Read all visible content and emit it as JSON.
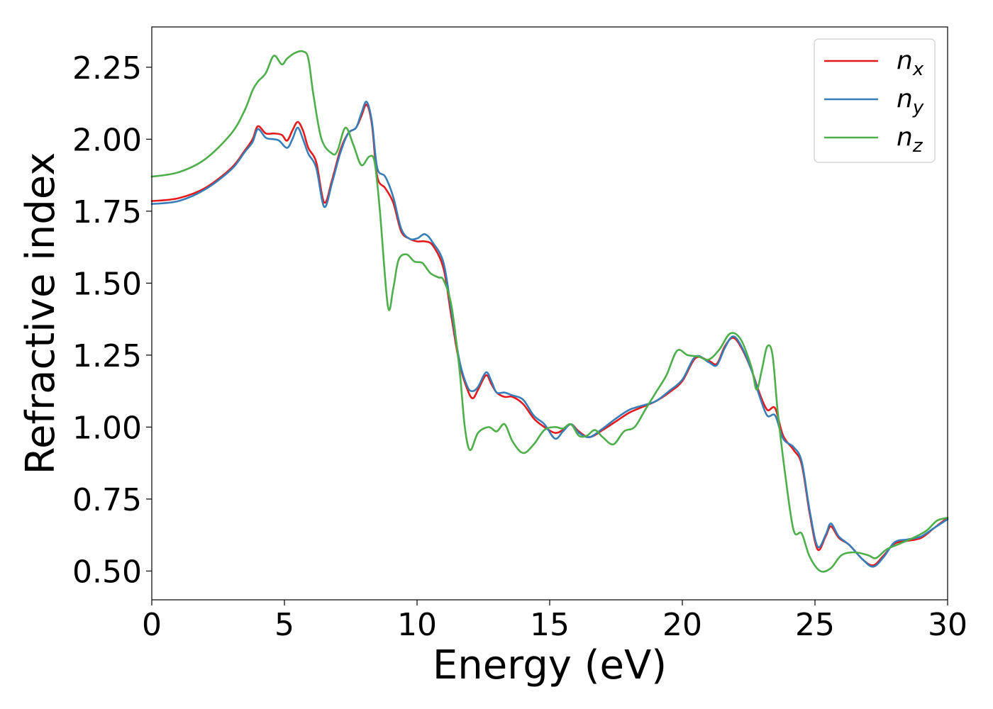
{
  "chart_data": {
    "type": "line",
    "xlabel": "Energy (eV)",
    "ylabel": "Refractive index",
    "xlim": [
      0,
      30
    ],
    "ylim": [
      0.4,
      2.39
    ],
    "xticks": [
      0,
      5,
      10,
      15,
      20,
      25,
      30
    ],
    "xtick_labels": [
      "0",
      "5",
      "10",
      "15",
      "20",
      "25",
      "30"
    ],
    "yticks": [
      0.5,
      0.75,
      1.0,
      1.25,
      1.5,
      1.75,
      2.0,
      2.25
    ],
    "ytick_labels": [
      "0.50",
      "0.75",
      "1.00",
      "1.25",
      "1.50",
      "1.75",
      "2.00",
      "2.25"
    ],
    "grid": false,
    "legend_position": "top-right",
    "series": [
      {
        "name": "n_x",
        "label_main": "n",
        "label_sub": "x",
        "color": "#e41a1c",
        "points": [
          [
            0,
            1.785
          ],
          [
            1,
            1.795
          ],
          [
            2,
            1.83
          ],
          [
            3,
            1.9
          ],
          [
            3.5,
            1.96
          ],
          [
            3.8,
            2.0
          ],
          [
            4.0,
            2.045
          ],
          [
            4.3,
            2.02
          ],
          [
            4.6,
            2.02
          ],
          [
            4.9,
            2.015
          ],
          [
            5.1,
            1.995
          ],
          [
            5.3,
            2.03
          ],
          [
            5.5,
            2.06
          ],
          [
            5.7,
            2.03
          ],
          [
            5.9,
            1.97
          ],
          [
            6.2,
            1.92
          ],
          [
            6.5,
            1.78
          ],
          [
            6.8,
            1.86
          ],
          [
            7.1,
            1.96
          ],
          [
            7.4,
            2.02
          ],
          [
            7.7,
            2.04
          ],
          [
            7.9,
            2.08
          ],
          [
            8.1,
            2.12
          ],
          [
            8.3,
            2.05
          ],
          [
            8.5,
            1.87
          ],
          [
            8.8,
            1.83
          ],
          [
            9.1,
            1.78
          ],
          [
            9.4,
            1.68
          ],
          [
            9.7,
            1.655
          ],
          [
            10.0,
            1.645
          ],
          [
            10.3,
            1.645
          ],
          [
            10.6,
            1.63
          ],
          [
            11.0,
            1.55
          ],
          [
            11.3,
            1.38
          ],
          [
            11.6,
            1.22
          ],
          [
            11.9,
            1.13
          ],
          [
            12.1,
            1.1
          ],
          [
            12.3,
            1.13
          ],
          [
            12.6,
            1.18
          ],
          [
            12.8,
            1.15
          ],
          [
            13.0,
            1.12
          ],
          [
            13.3,
            1.105
          ],
          [
            13.6,
            1.105
          ],
          [
            14.0,
            1.08
          ],
          [
            14.4,
            1.03
          ],
          [
            14.8,
            1.0
          ],
          [
            15.2,
            0.98
          ],
          [
            15.5,
            0.99
          ],
          [
            15.8,
            1.01
          ],
          [
            16.1,
            0.985
          ],
          [
            16.5,
            0.965
          ],
          [
            17.0,
            0.99
          ],
          [
            17.5,
            1.02
          ],
          [
            18.0,
            1.05
          ],
          [
            18.5,
            1.07
          ],
          [
            19.0,
            1.09
          ],
          [
            19.5,
            1.12
          ],
          [
            20.0,
            1.16
          ],
          [
            20.5,
            1.24
          ],
          [
            21.0,
            1.23
          ],
          [
            21.3,
            1.22
          ],
          [
            21.6,
            1.28
          ],
          [
            21.9,
            1.31
          ],
          [
            22.2,
            1.28
          ],
          [
            22.6,
            1.2
          ],
          [
            22.9,
            1.12
          ],
          [
            23.2,
            1.06
          ],
          [
            23.5,
            1.065
          ],
          [
            23.8,
            0.97
          ],
          [
            24.2,
            0.92
          ],
          [
            24.5,
            0.87
          ],
          [
            24.8,
            0.7
          ],
          [
            25.1,
            0.575
          ],
          [
            25.4,
            0.62
          ],
          [
            25.6,
            0.655
          ],
          [
            25.9,
            0.615
          ],
          [
            26.3,
            0.59
          ],
          [
            26.8,
            0.54
          ],
          [
            27.2,
            0.52
          ],
          [
            27.6,
            0.555
          ],
          [
            28.0,
            0.595
          ],
          [
            28.5,
            0.605
          ],
          [
            29.0,
            0.615
          ],
          [
            29.5,
            0.65
          ],
          [
            30.0,
            0.685
          ]
        ]
      },
      {
        "name": "n_y",
        "label_main": "n",
        "label_sub": "y",
        "color": "#377eb8",
        "points": [
          [
            0,
            1.775
          ],
          [
            1,
            1.785
          ],
          [
            2,
            1.825
          ],
          [
            3,
            1.895
          ],
          [
            3.5,
            1.955
          ],
          [
            3.8,
            1.99
          ],
          [
            4.0,
            2.035
          ],
          [
            4.3,
            2.005
          ],
          [
            4.6,
            2.0
          ],
          [
            4.8,
            1.995
          ],
          [
            5.1,
            1.97
          ],
          [
            5.3,
            2.0
          ],
          [
            5.5,
            2.04
          ],
          [
            5.7,
            2.0
          ],
          [
            5.9,
            1.95
          ],
          [
            6.2,
            1.9
          ],
          [
            6.5,
            1.765
          ],
          [
            6.8,
            1.85
          ],
          [
            7.1,
            1.95
          ],
          [
            7.4,
            2.02
          ],
          [
            7.7,
            2.04
          ],
          [
            7.9,
            2.09
          ],
          [
            8.1,
            2.13
          ],
          [
            8.3,
            2.06
          ],
          [
            8.5,
            1.9
          ],
          [
            8.8,
            1.87
          ],
          [
            9.1,
            1.8
          ],
          [
            9.4,
            1.69
          ],
          [
            9.7,
            1.655
          ],
          [
            10.0,
            1.655
          ],
          [
            10.3,
            1.67
          ],
          [
            10.6,
            1.64
          ],
          [
            11.0,
            1.57
          ],
          [
            11.3,
            1.4
          ],
          [
            11.6,
            1.23
          ],
          [
            11.9,
            1.14
          ],
          [
            12.1,
            1.125
          ],
          [
            12.3,
            1.14
          ],
          [
            12.6,
            1.19
          ],
          [
            12.8,
            1.16
          ],
          [
            13.0,
            1.12
          ],
          [
            13.3,
            1.12
          ],
          [
            13.6,
            1.11
          ],
          [
            14.0,
            1.095
          ],
          [
            14.4,
            1.04
          ],
          [
            14.8,
            1.01
          ],
          [
            15.2,
            0.96
          ],
          [
            15.5,
            0.985
          ],
          [
            15.8,
            1.01
          ],
          [
            16.1,
            0.98
          ],
          [
            16.5,
            0.965
          ],
          [
            17.0,
            0.995
          ],
          [
            17.5,
            1.03
          ],
          [
            18.0,
            1.06
          ],
          [
            18.5,
            1.075
          ],
          [
            19.0,
            1.09
          ],
          [
            19.5,
            1.125
          ],
          [
            20.0,
            1.165
          ],
          [
            20.5,
            1.245
          ],
          [
            21.0,
            1.225
          ],
          [
            21.3,
            1.215
          ],
          [
            21.6,
            1.275
          ],
          [
            21.9,
            1.315
          ],
          [
            22.2,
            1.285
          ],
          [
            22.6,
            1.2
          ],
          [
            22.9,
            1.11
          ],
          [
            23.2,
            1.04
          ],
          [
            23.5,
            1.04
          ],
          [
            23.8,
            0.96
          ],
          [
            24.2,
            0.93
          ],
          [
            24.5,
            0.88
          ],
          [
            24.8,
            0.71
          ],
          [
            25.1,
            0.585
          ],
          [
            25.4,
            0.625
          ],
          [
            25.6,
            0.665
          ],
          [
            25.9,
            0.62
          ],
          [
            26.3,
            0.59
          ],
          [
            26.8,
            0.54
          ],
          [
            27.2,
            0.515
          ],
          [
            27.6,
            0.55
          ],
          [
            28.0,
            0.6
          ],
          [
            28.5,
            0.61
          ],
          [
            29.0,
            0.62
          ],
          [
            29.5,
            0.65
          ],
          [
            30.0,
            0.68
          ]
        ]
      },
      {
        "name": "n_z",
        "label_main": "n",
        "label_sub": "z",
        "color": "#4daf4a",
        "points": [
          [
            0,
            1.87
          ],
          [
            1,
            1.885
          ],
          [
            2,
            1.93
          ],
          [
            3,
            2.02
          ],
          [
            3.5,
            2.1
          ],
          [
            3.8,
            2.17
          ],
          [
            4.0,
            2.2
          ],
          [
            4.3,
            2.23
          ],
          [
            4.6,
            2.29
          ],
          [
            4.9,
            2.26
          ],
          [
            5.1,
            2.28
          ],
          [
            5.4,
            2.3
          ],
          [
            5.7,
            2.305
          ],
          [
            5.9,
            2.28
          ],
          [
            6.1,
            2.15
          ],
          [
            6.4,
            2.0
          ],
          [
            6.8,
            1.95
          ],
          [
            7.0,
            1.96
          ],
          [
            7.3,
            2.04
          ],
          [
            7.6,
            1.98
          ],
          [
            7.9,
            1.91
          ],
          [
            8.2,
            1.94
          ],
          [
            8.4,
            1.92
          ],
          [
            8.6,
            1.75
          ],
          [
            8.9,
            1.42
          ],
          [
            9.1,
            1.48
          ],
          [
            9.3,
            1.58
          ],
          [
            9.6,
            1.6
          ],
          [
            9.9,
            1.575
          ],
          [
            10.2,
            1.57
          ],
          [
            10.5,
            1.535
          ],
          [
            10.8,
            1.52
          ],
          [
            11.0,
            1.51
          ],
          [
            11.3,
            1.42
          ],
          [
            11.6,
            1.2
          ],
          [
            11.8,
            1.0
          ],
          [
            12.0,
            0.92
          ],
          [
            12.3,
            0.98
          ],
          [
            12.7,
            1.0
          ],
          [
            13.0,
            0.985
          ],
          [
            13.3,
            1.01
          ],
          [
            13.6,
            0.95
          ],
          [
            14.0,
            0.91
          ],
          [
            14.4,
            0.94
          ],
          [
            14.8,
            0.99
          ],
          [
            15.2,
            1.0
          ],
          [
            15.5,
            0.995
          ],
          [
            15.8,
            1.01
          ],
          [
            16.1,
            0.97
          ],
          [
            16.4,
            0.97
          ],
          [
            16.7,
            0.99
          ],
          [
            17.0,
            0.965
          ],
          [
            17.4,
            0.94
          ],
          [
            17.8,
            0.985
          ],
          [
            18.2,
            1.0
          ],
          [
            18.6,
            1.06
          ],
          [
            19.0,
            1.12
          ],
          [
            19.4,
            1.18
          ],
          [
            19.8,
            1.265
          ],
          [
            20.2,
            1.25
          ],
          [
            20.6,
            1.245
          ],
          [
            21.0,
            1.235
          ],
          [
            21.4,
            1.27
          ],
          [
            21.8,
            1.325
          ],
          [
            22.2,
            1.305
          ],
          [
            22.6,
            1.21
          ],
          [
            22.8,
            1.13
          ],
          [
            23.0,
            1.2
          ],
          [
            23.2,
            1.28
          ],
          [
            23.4,
            1.25
          ],
          [
            23.6,
            1.05
          ],
          [
            23.9,
            0.82
          ],
          [
            24.2,
            0.64
          ],
          [
            24.5,
            0.63
          ],
          [
            24.8,
            0.55
          ],
          [
            25.2,
            0.5
          ],
          [
            25.6,
            0.51
          ],
          [
            26.0,
            0.555
          ],
          [
            26.5,
            0.565
          ],
          [
            27.0,
            0.555
          ],
          [
            27.3,
            0.545
          ],
          [
            27.7,
            0.575
          ],
          [
            28.2,
            0.595
          ],
          [
            28.7,
            0.615
          ],
          [
            29.2,
            0.64
          ],
          [
            29.6,
            0.675
          ],
          [
            30.0,
            0.685
          ]
        ]
      }
    ]
  }
}
